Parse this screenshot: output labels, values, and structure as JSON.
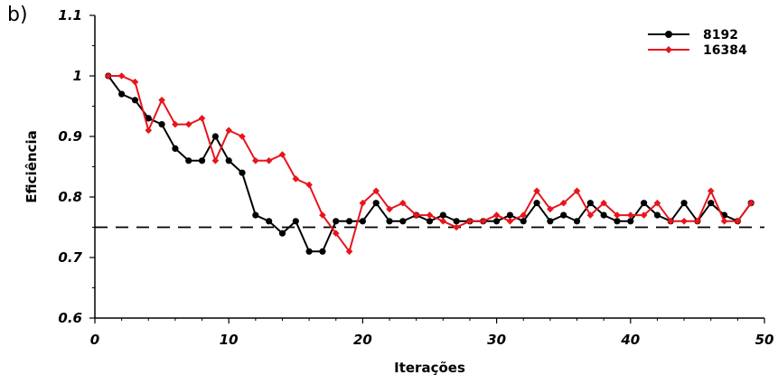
{
  "panel_label": "b)",
  "chart_data": {
    "type": "line",
    "xlabel": "Iterações",
    "ylabel": "Eficiência",
    "xlim": [
      0,
      50
    ],
    "ylim": [
      0.6,
      1.1
    ],
    "xticks": [
      0,
      10,
      20,
      30,
      40,
      50
    ],
    "xtick_labels": [
      "0",
      "10",
      "20",
      "30",
      "40",
      "50"
    ],
    "yticks": [
      0.6,
      0.7,
      0.8,
      0.9,
      1.0,
      1.1
    ],
    "ytick_labels": [
      "0.6",
      "0.7",
      "0.8",
      "0.9",
      "1",
      "1.1"
    ],
    "grid": false,
    "legend_position": "top-right",
    "reference_line": {
      "y": 0.75,
      "style": "dashed",
      "color": "#000000"
    },
    "x": [
      1,
      2,
      3,
      4,
      5,
      6,
      7,
      8,
      9,
      10,
      11,
      12,
      13,
      14,
      15,
      16,
      17,
      18,
      19,
      20,
      21,
      22,
      23,
      24,
      25,
      26,
      27,
      28,
      29,
      30,
      31,
      32,
      33,
      34,
      35,
      36,
      37,
      38,
      39,
      40,
      41,
      42,
      43,
      44,
      45,
      46,
      47,
      48,
      49
    ],
    "series": [
      {
        "name": "8192",
        "color": "#000000",
        "marker": "circle",
        "values": [
          1.0,
          0.97,
          0.96,
          0.93,
          0.92,
          0.88,
          0.86,
          0.86,
          0.9,
          0.86,
          0.84,
          0.77,
          0.76,
          0.74,
          0.76,
          0.71,
          0.71,
          0.76,
          0.76,
          0.76,
          0.79,
          0.76,
          0.76,
          0.77,
          0.76,
          0.77,
          0.76,
          0.76,
          0.76,
          0.76,
          0.77,
          0.76,
          0.79,
          0.76,
          0.77,
          0.76,
          0.79,
          0.77,
          0.76,
          0.76,
          0.79,
          0.77,
          0.76,
          0.79,
          0.76,
          0.79,
          0.77,
          0.76,
          0.79
        ]
      },
      {
        "name": "16384",
        "color": "#e8141b",
        "marker": "diamond",
        "values": [
          1.0,
          1.0,
          0.99,
          0.91,
          0.96,
          0.92,
          0.92,
          0.93,
          0.86,
          0.91,
          0.9,
          0.86,
          0.86,
          0.87,
          0.83,
          0.82,
          0.77,
          0.74,
          0.71,
          0.79,
          0.81,
          0.78,
          0.79,
          0.77,
          0.77,
          0.76,
          0.75,
          0.76,
          0.76,
          0.77,
          0.76,
          0.77,
          0.81,
          0.78,
          0.79,
          0.81,
          0.77,
          0.79,
          0.77,
          0.77,
          0.77,
          0.79,
          0.76,
          0.76,
          0.76,
          0.81,
          0.76,
          0.76,
          0.79
        ]
      }
    ]
  }
}
